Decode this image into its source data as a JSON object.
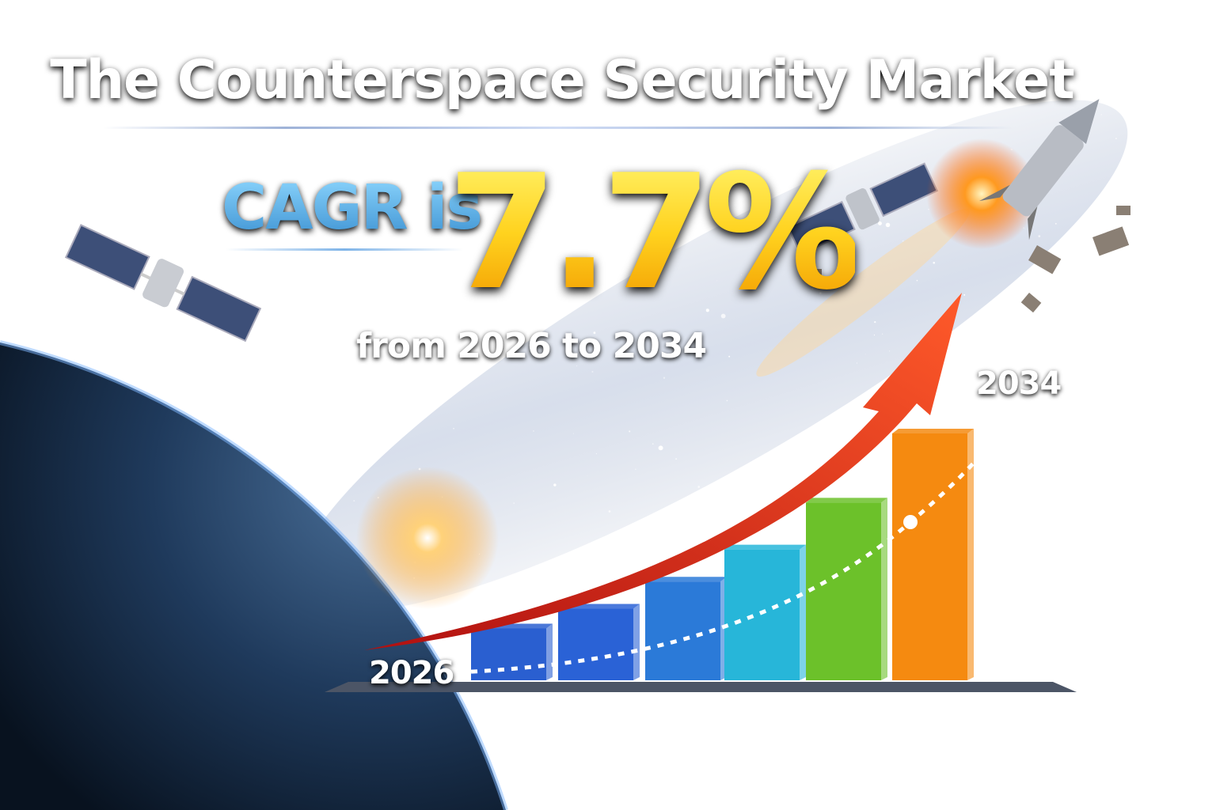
{
  "title": "The Counterspace Security Market",
  "cagr_label": "CAGR is",
  "cagr_value": "7.7%",
  "period": "from 2026 to 2034",
  "start_year": "2026",
  "end_year": "2034",
  "bars": [
    {
      "color": "#2a5fd0",
      "relative_height": 0.21
    },
    {
      "color": "#2a62d6",
      "relative_height": 0.29
    },
    {
      "color": "#2b7ad8",
      "relative_height": 0.4
    },
    {
      "color": "#27b6d9",
      "relative_height": 0.53
    },
    {
      "color": "#6cc12a",
      "relative_height": 0.72
    },
    {
      "color": "#f58a10",
      "relative_height": 1.0
    }
  ],
  "colors": {
    "arrow": "#e8361c",
    "cagr_value": "#ffd21e",
    "cagr_label": "#5fb4e8"
  }
}
